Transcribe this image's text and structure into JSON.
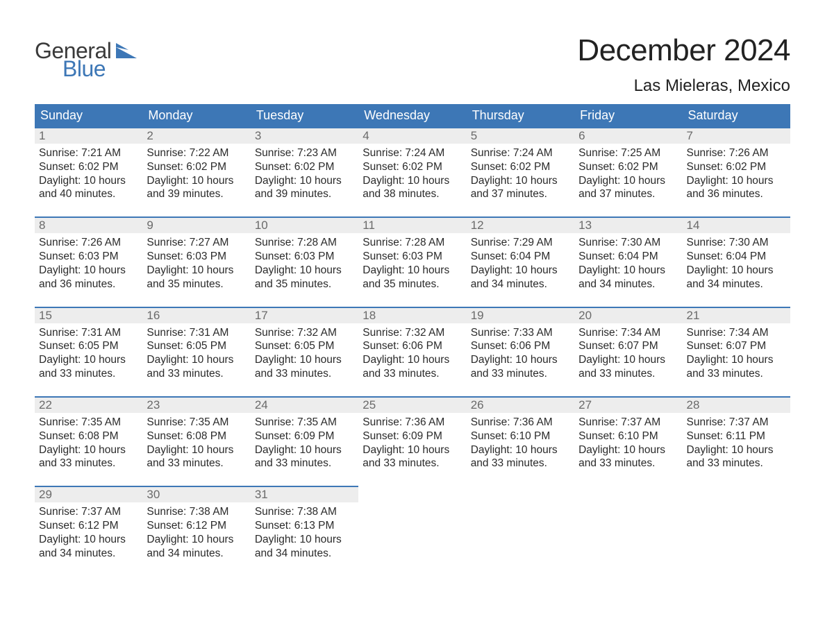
{
  "branding": {
    "word1": "General",
    "word2": "Blue",
    "flag_color": "#3d77b6",
    "word1_color": "#3a3a3a",
    "word2_color": "#3d77b6"
  },
  "header": {
    "month_title": "December 2024",
    "location": "Las Mieleras, Mexico"
  },
  "colors": {
    "header_bg": "#3d77b6",
    "header_text": "#ffffff",
    "daynum_bg": "#ededed",
    "daynum_border": "#3d77b6",
    "daynum_text": "#6a6a6a",
    "body_text": "#2a2a2a",
    "page_bg": "#ffffff"
  },
  "weekdays": [
    "Sunday",
    "Monday",
    "Tuesday",
    "Wednesday",
    "Thursday",
    "Friday",
    "Saturday"
  ],
  "weeks": [
    [
      {
        "day": "1",
        "sunrise": "Sunrise: 7:21 AM",
        "sunset": "Sunset: 6:02 PM",
        "daylight1": "Daylight: 10 hours",
        "daylight2": "and 40 minutes."
      },
      {
        "day": "2",
        "sunrise": "Sunrise: 7:22 AM",
        "sunset": "Sunset: 6:02 PM",
        "daylight1": "Daylight: 10 hours",
        "daylight2": "and 39 minutes."
      },
      {
        "day": "3",
        "sunrise": "Sunrise: 7:23 AM",
        "sunset": "Sunset: 6:02 PM",
        "daylight1": "Daylight: 10 hours",
        "daylight2": "and 39 minutes."
      },
      {
        "day": "4",
        "sunrise": "Sunrise: 7:24 AM",
        "sunset": "Sunset: 6:02 PM",
        "daylight1": "Daylight: 10 hours",
        "daylight2": "and 38 minutes."
      },
      {
        "day": "5",
        "sunrise": "Sunrise: 7:24 AM",
        "sunset": "Sunset: 6:02 PM",
        "daylight1": "Daylight: 10 hours",
        "daylight2": "and 37 minutes."
      },
      {
        "day": "6",
        "sunrise": "Sunrise: 7:25 AM",
        "sunset": "Sunset: 6:02 PM",
        "daylight1": "Daylight: 10 hours",
        "daylight2": "and 37 minutes."
      },
      {
        "day": "7",
        "sunrise": "Sunrise: 7:26 AM",
        "sunset": "Sunset: 6:02 PM",
        "daylight1": "Daylight: 10 hours",
        "daylight2": "and 36 minutes."
      }
    ],
    [
      {
        "day": "8",
        "sunrise": "Sunrise: 7:26 AM",
        "sunset": "Sunset: 6:03 PM",
        "daylight1": "Daylight: 10 hours",
        "daylight2": "and 36 minutes."
      },
      {
        "day": "9",
        "sunrise": "Sunrise: 7:27 AM",
        "sunset": "Sunset: 6:03 PM",
        "daylight1": "Daylight: 10 hours",
        "daylight2": "and 35 minutes."
      },
      {
        "day": "10",
        "sunrise": "Sunrise: 7:28 AM",
        "sunset": "Sunset: 6:03 PM",
        "daylight1": "Daylight: 10 hours",
        "daylight2": "and 35 minutes."
      },
      {
        "day": "11",
        "sunrise": "Sunrise: 7:28 AM",
        "sunset": "Sunset: 6:03 PM",
        "daylight1": "Daylight: 10 hours",
        "daylight2": "and 35 minutes."
      },
      {
        "day": "12",
        "sunrise": "Sunrise: 7:29 AM",
        "sunset": "Sunset: 6:04 PM",
        "daylight1": "Daylight: 10 hours",
        "daylight2": "and 34 minutes."
      },
      {
        "day": "13",
        "sunrise": "Sunrise: 7:30 AM",
        "sunset": "Sunset: 6:04 PM",
        "daylight1": "Daylight: 10 hours",
        "daylight2": "and 34 minutes."
      },
      {
        "day": "14",
        "sunrise": "Sunrise: 7:30 AM",
        "sunset": "Sunset: 6:04 PM",
        "daylight1": "Daylight: 10 hours",
        "daylight2": "and 34 minutes."
      }
    ],
    [
      {
        "day": "15",
        "sunrise": "Sunrise: 7:31 AM",
        "sunset": "Sunset: 6:05 PM",
        "daylight1": "Daylight: 10 hours",
        "daylight2": "and 33 minutes."
      },
      {
        "day": "16",
        "sunrise": "Sunrise: 7:31 AM",
        "sunset": "Sunset: 6:05 PM",
        "daylight1": "Daylight: 10 hours",
        "daylight2": "and 33 minutes."
      },
      {
        "day": "17",
        "sunrise": "Sunrise: 7:32 AM",
        "sunset": "Sunset: 6:05 PM",
        "daylight1": "Daylight: 10 hours",
        "daylight2": "and 33 minutes."
      },
      {
        "day": "18",
        "sunrise": "Sunrise: 7:32 AM",
        "sunset": "Sunset: 6:06 PM",
        "daylight1": "Daylight: 10 hours",
        "daylight2": "and 33 minutes."
      },
      {
        "day": "19",
        "sunrise": "Sunrise: 7:33 AM",
        "sunset": "Sunset: 6:06 PM",
        "daylight1": "Daylight: 10 hours",
        "daylight2": "and 33 minutes."
      },
      {
        "day": "20",
        "sunrise": "Sunrise: 7:34 AM",
        "sunset": "Sunset: 6:07 PM",
        "daylight1": "Daylight: 10 hours",
        "daylight2": "and 33 minutes."
      },
      {
        "day": "21",
        "sunrise": "Sunrise: 7:34 AM",
        "sunset": "Sunset: 6:07 PM",
        "daylight1": "Daylight: 10 hours",
        "daylight2": "and 33 minutes."
      }
    ],
    [
      {
        "day": "22",
        "sunrise": "Sunrise: 7:35 AM",
        "sunset": "Sunset: 6:08 PM",
        "daylight1": "Daylight: 10 hours",
        "daylight2": "and 33 minutes."
      },
      {
        "day": "23",
        "sunrise": "Sunrise: 7:35 AM",
        "sunset": "Sunset: 6:08 PM",
        "daylight1": "Daylight: 10 hours",
        "daylight2": "and 33 minutes."
      },
      {
        "day": "24",
        "sunrise": "Sunrise: 7:35 AM",
        "sunset": "Sunset: 6:09 PM",
        "daylight1": "Daylight: 10 hours",
        "daylight2": "and 33 minutes."
      },
      {
        "day": "25",
        "sunrise": "Sunrise: 7:36 AM",
        "sunset": "Sunset: 6:09 PM",
        "daylight1": "Daylight: 10 hours",
        "daylight2": "and 33 minutes."
      },
      {
        "day": "26",
        "sunrise": "Sunrise: 7:36 AM",
        "sunset": "Sunset: 6:10 PM",
        "daylight1": "Daylight: 10 hours",
        "daylight2": "and 33 minutes."
      },
      {
        "day": "27",
        "sunrise": "Sunrise: 7:37 AM",
        "sunset": "Sunset: 6:10 PM",
        "daylight1": "Daylight: 10 hours",
        "daylight2": "and 33 minutes."
      },
      {
        "day": "28",
        "sunrise": "Sunrise: 7:37 AM",
        "sunset": "Sunset: 6:11 PM",
        "daylight1": "Daylight: 10 hours",
        "daylight2": "and 33 minutes."
      }
    ],
    [
      {
        "day": "29",
        "sunrise": "Sunrise: 7:37 AM",
        "sunset": "Sunset: 6:12 PM",
        "daylight1": "Daylight: 10 hours",
        "daylight2": "and 34 minutes."
      },
      {
        "day": "30",
        "sunrise": "Sunrise: 7:38 AM",
        "sunset": "Sunset: 6:12 PM",
        "daylight1": "Daylight: 10 hours",
        "daylight2": "and 34 minutes."
      },
      {
        "day": "31",
        "sunrise": "Sunrise: 7:38 AM",
        "sunset": "Sunset: 6:13 PM",
        "daylight1": "Daylight: 10 hours",
        "daylight2": "and 34 minutes."
      },
      null,
      null,
      null,
      null
    ]
  ]
}
